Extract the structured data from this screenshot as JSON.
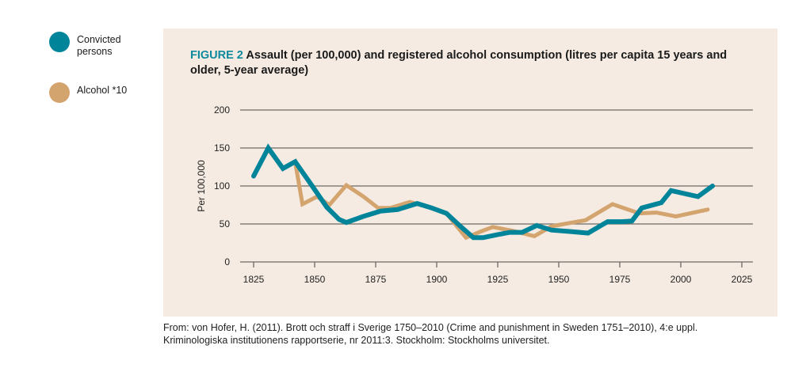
{
  "legend": [
    {
      "label": "Convicted persons",
      "color": "#00849a"
    },
    {
      "label": "Alcohol *10",
      "color": "#d4a46f"
    }
  ],
  "colors": {
    "panel_bg": "#f5ebe2",
    "accent": "#0b8a9e",
    "grid": "#6e6a66"
  },
  "title": {
    "figure": "FIGURE 2",
    "text": " Assault (per 100,000) and registered alcohol consumption (litres per capita 15 years and older, 5-year average)"
  },
  "source": {
    "line1": "From: von Hofer, H. (2011). Brott och straff i Sverige 1750–2010 (Crime and punishment in Sweden 1751–2010), 4:e uppl.",
    "line2": "Kriminologiska institutionens rapportserie, nr 2011:3. Stockholm: Stockholms universitet."
  },
  "chart_data": {
    "type": "line",
    "title": "FIGURE 2 Assault (per 100,000) and registered alcohol consumption (litres per capita 15 years and older, 5-year average)",
    "xlabel": "",
    "ylabel": "Per 100,000",
    "xlim": [
      1820,
      2029
    ],
    "ylim": [
      0,
      200
    ],
    "xticks": [
      1825,
      1850,
      1875,
      1900,
      1925,
      1950,
      1975,
      2000,
      2025
    ],
    "yticks": [
      0,
      50,
      100,
      150,
      200
    ],
    "grid": "horizontal",
    "legend_position": "left-outside",
    "series": [
      {
        "name": "Convicted persons",
        "color": "#00849a",
        "x": [
          1825,
          1831,
          1837,
          1842,
          1849,
          1855,
          1860,
          1863,
          1870,
          1877,
          1884,
          1892,
          1898,
          1904,
          1910,
          1915,
          1919,
          1925,
          1930,
          1935,
          1941,
          1947,
          1955,
          1962,
          1970,
          1976,
          1980,
          1984,
          1992,
          1996,
          2007,
          2013
        ],
        "y": [
          113,
          150,
          123,
          132,
          100,
          72,
          56,
          52,
          60,
          67,
          69,
          77,
          71,
          64,
          46,
          32,
          32,
          36,
          39,
          39,
          48,
          42,
          40,
          38,
          53,
          53,
          54,
          71,
          78,
          94,
          86,
          100
        ]
      },
      {
        "name": "Alcohol *10",
        "color": "#d4a46f",
        "x": [
          1831,
          1837,
          1842,
          1845,
          1851,
          1856,
          1863,
          1870,
          1876,
          1881,
          1889,
          1897,
          1904,
          1912,
          1918,
          1923,
          1931,
          1940,
          1947,
          1961,
          1972,
          1983,
          1990,
          1998,
          2011
        ],
        "y": [
          148,
          123,
          132,
          76,
          86,
          75,
          101,
          86,
          71,
          71,
          79,
          72,
          64,
          32,
          40,
          46,
          41,
          34,
          47,
          55,
          76,
          64,
          65,
          60,
          69
        ]
      }
    ]
  }
}
